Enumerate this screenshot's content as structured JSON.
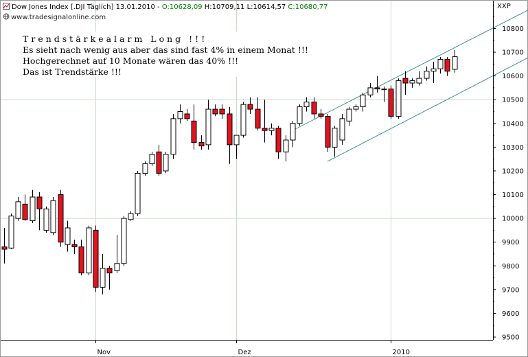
{
  "header": {
    "instrument": "Dow Jones Index [.DJI  Täglich] 13.01.2010 - ",
    "open": "O:10628,09",
    "high": "H:10709,11",
    "low": "L:10614,57",
    "close": "C:10680,77"
  },
  "source": "www.tradesignalonline.com",
  "annotation": {
    "line1": "Trendstärkealarm Long !!!",
    "line2": "Es sieht nach wenig aus aber das sind fast 4% in einem Monat !!!",
    "line3": "Hochgerechnet auf 10 Monate wären das 40% !!!",
    "line4": "Das ist Trendstärke !!!"
  },
  "colors": {
    "bull_candle": "#ffffff",
    "bear_candle": "#e0141e",
    "grid_line": "#c6ddc6",
    "channel_line": "#3e8f8f"
  },
  "chart_data": {
    "type": "candlestick",
    "y_axis_label": "XXP",
    "ylim": [
      9500,
      10850
    ],
    "y_ticks": [
      9500,
      9600,
      9700,
      9800,
      9900,
      10000,
      10100,
      10200,
      10300,
      10400,
      10500,
      10600,
      10700,
      10800
    ],
    "y_tick_labels": [
      "9500",
      "9600",
      "9700",
      "9800",
      "9900",
      "10000",
      "10100",
      "10200",
      "10300",
      "10400",
      "10500",
      "10600",
      "10700",
      "10800"
    ],
    "horizontal_lines": [
      10000,
      10500
    ],
    "x_tick_labels": [
      {
        "label": "Nov",
        "bar_index": 13
      },
      {
        "label": "Dez",
        "bar_index": 33
      },
      {
        "label": "2010",
        "bar_index": 55
      }
    ],
    "candles": [
      {
        "o": 9880,
        "h": 9960,
        "l": 9810,
        "c": 9870
      },
      {
        "o": 9875,
        "h": 10020,
        "l": 9870,
        "c": 10010
      },
      {
        "o": 10000,
        "h": 10090,
        "l": 9990,
        "c": 10070
      },
      {
        "o": 10060,
        "h": 10100,
        "l": 9990,
        "c": 9995
      },
      {
        "o": 9990,
        "h": 10120,
        "l": 9980,
        "c": 10090
      },
      {
        "o": 10090,
        "h": 10110,
        "l": 9950,
        "c": 10040
      },
      {
        "o": 9950,
        "h": 10050,
        "l": 9940,
        "c": 10040
      },
      {
        "o": 9940,
        "h": 10090,
        "l": 9930,
        "c": 10075
      },
      {
        "o": 10100,
        "h": 10120,
        "l": 9880,
        "c": 9900
      },
      {
        "o": 9890,
        "h": 9990,
        "l": 9860,
        "c": 9960
      },
      {
        "o": 9890,
        "h": 9910,
        "l": 9850,
        "c": 9880
      },
      {
        "o": 9880,
        "h": 9910,
        "l": 9760,
        "c": 9770
      },
      {
        "o": 9770,
        "h": 9970,
        "l": 9760,
        "c": 9960
      },
      {
        "o": 9950,
        "h": 9970,
        "l": 9690,
        "c": 9710
      },
      {
        "o": 9710,
        "h": 9850,
        "l": 9680,
        "c": 9790
      },
      {
        "o": 9790,
        "h": 9800,
        "l": 9700,
        "c": 9770
      },
      {
        "o": 9780,
        "h": 9930,
        "l": 9770,
        "c": 9810
      },
      {
        "o": 9810,
        "h": 10010,
        "l": 9800,
        "c": 10000
      },
      {
        "o": 9995,
        "h": 10030,
        "l": 9990,
        "c": 10020
      },
      {
        "o": 10020,
        "h": 10200,
        "l": 10010,
        "c": 10190
      },
      {
        "o": 10190,
        "h": 10240,
        "l": 10180,
        "c": 10230
      },
      {
        "o": 10230,
        "h": 10280,
        "l": 10220,
        "c": 10270
      },
      {
        "o": 10280,
        "h": 10310,
        "l": 10180,
        "c": 10190
      },
      {
        "o": 10200,
        "h": 10280,
        "l": 10190,
        "c": 10270
      },
      {
        "o": 10270,
        "h": 10440,
        "l": 10250,
        "c": 10420
      },
      {
        "o": 10420,
        "h": 10480,
        "l": 10400,
        "c": 10450
      },
      {
        "o": 10440,
        "h": 10460,
        "l": 10410,
        "c": 10420
      },
      {
        "o": 10410,
        "h": 10480,
        "l": 10290,
        "c": 10320
      },
      {
        "o": 10320,
        "h": 10350,
        "l": 10290,
        "c": 10305
      },
      {
        "o": 10310,
        "h": 10500,
        "l": 10290,
        "c": 10460
      },
      {
        "o": 10460,
        "h": 10480,
        "l": 10430,
        "c": 10440
      },
      {
        "o": 10460,
        "h": 10480,
        "l": 10420,
        "c": 10440
      },
      {
        "o": 10440,
        "h": 10470,
        "l": 10230,
        "c": 10310
      },
      {
        "o": 10310,
        "h": 10350,
        "l": 10250,
        "c": 10350
      },
      {
        "o": 10350,
        "h": 10490,
        "l": 10340,
        "c": 10480
      },
      {
        "o": 10480,
        "h": 10510,
        "l": 10440,
        "c": 10460
      },
      {
        "o": 10460,
        "h": 10510,
        "l": 10370,
        "c": 10380
      },
      {
        "o": 10380,
        "h": 10500,
        "l": 10320,
        "c": 10370
      },
      {
        "o": 10370,
        "h": 10400,
        "l": 10350,
        "c": 10380
      },
      {
        "o": 10380,
        "h": 10390,
        "l": 10250,
        "c": 10280
      },
      {
        "o": 10280,
        "h": 10350,
        "l": 10240,
        "c": 10330
      },
      {
        "o": 10330,
        "h": 10410,
        "l": 10300,
        "c": 10400
      },
      {
        "o": 10400,
        "h": 10480,
        "l": 10390,
        "c": 10470
      },
      {
        "o": 10470,
        "h": 10510,
        "l": 10450,
        "c": 10490
      },
      {
        "o": 10490,
        "h": 10510,
        "l": 10420,
        "c": 10440
      },
      {
        "o": 10440,
        "h": 10460,
        "l": 10420,
        "c": 10430
      },
      {
        "o": 10430,
        "h": 10440,
        "l": 10280,
        "c": 10300
      },
      {
        "o": 10300,
        "h": 10390,
        "l": 10260,
        "c": 10380
      },
      {
        "o": 10330,
        "h": 10440,
        "l": 10310,
        "c": 10420
      },
      {
        "o": 10410,
        "h": 10470,
        "l": 10390,
        "c": 10460
      },
      {
        "o": 10460,
        "h": 10480,
        "l": 10450,
        "c": 10470
      },
      {
        "o": 10470,
        "h": 10530,
        "l": 10450,
        "c": 10520
      },
      {
        "o": 10520,
        "h": 10570,
        "l": 10510,
        "c": 10550
      },
      {
        "o": 10550,
        "h": 10600,
        "l": 10530,
        "c": 10545
      },
      {
        "o": 10545,
        "h": 10555,
        "l": 10490,
        "c": 10545
      },
      {
        "o": 10545,
        "h": 10560,
        "l": 10420,
        "c": 10430
      },
      {
        "o": 10430,
        "h": 10590,
        "l": 10420,
        "c": 10580
      },
      {
        "o": 10590,
        "h": 10620,
        "l": 10520,
        "c": 10570
      },
      {
        "o": 10570,
        "h": 10590,
        "l": 10550,
        "c": 10580
      },
      {
        "o": 10570,
        "h": 10620,
        "l": 10560,
        "c": 10590
      },
      {
        "o": 10590,
        "h": 10640,
        "l": 10580,
        "c": 10620
      },
      {
        "o": 10620,
        "h": 10660,
        "l": 10570,
        "c": 10630
      },
      {
        "o": 10630,
        "h": 10680,
        "l": 10610,
        "c": 10670
      },
      {
        "o": 10670,
        "h": 10680,
        "l": 10600,
        "c": 10620
      },
      {
        "o": 10628,
        "h": 10709,
        "l": 10614,
        "c": 10681
      }
    ],
    "channel_lines": [
      {
        "start": {
          "bar": 41,
          "price": 10370
        },
        "end": {
          "bar": 76,
          "price": 10900
        }
      },
      {
        "start": {
          "bar": 46,
          "price": 10240
        },
        "end": {
          "bar": 76,
          "price": 10700
        }
      }
    ],
    "grid": true
  }
}
